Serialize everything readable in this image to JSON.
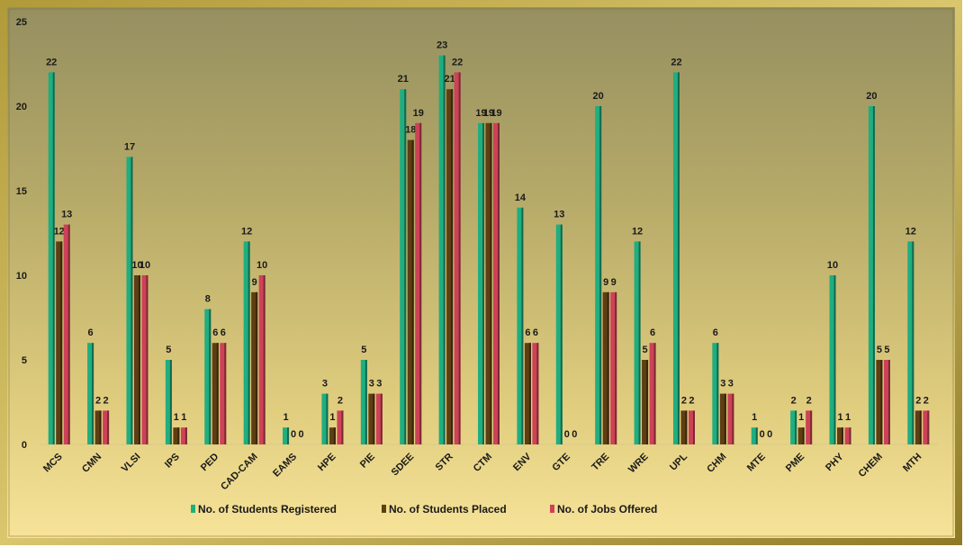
{
  "chart_data": {
    "type": "bar",
    "categories": [
      "MCS",
      "CMN",
      "VLSI",
      "IPS",
      "PED",
      "CAD-CAM",
      "EAMS",
      "HPE",
      "PIE",
      "SDEE",
      "STR",
      "CTM",
      "ENV",
      "GTE",
      "TRE",
      "WRE",
      "UPL",
      "CHM",
      "MTE",
      "PME",
      "PHY",
      "CHEM",
      "MTH"
    ],
    "series": [
      {
        "name": "No. of Students Registered",
        "color": "#1fae80",
        "values": [
          22,
          6,
          17,
          5,
          8,
          12,
          1,
          3,
          5,
          21,
          23,
          19,
          14,
          13,
          20,
          12,
          22,
          6,
          1,
          2,
          10,
          20,
          12
        ]
      },
      {
        "name": "No. of Students Placed",
        "color": "#5e3e12",
        "values": [
          12,
          2,
          10,
          1,
          6,
          9,
          0,
          1,
          3,
          18,
          21,
          19,
          6,
          0,
          9,
          5,
          2,
          3,
          0,
          1,
          1,
          5,
          2
        ]
      },
      {
        "name": "No. of Jobs Offered",
        "color": "#cd4257",
        "values": [
          13,
          2,
          10,
          1,
          6,
          10,
          0,
          2,
          3,
          19,
          22,
          19,
          6,
          0,
          9,
          6,
          2,
          3,
          0,
          2,
          1,
          5,
          2
        ]
      }
    ],
    "ylim": [
      0,
      25
    ],
    "yticks": [
      0,
      5,
      10,
      15,
      20,
      25
    ],
    "grid": false,
    "legend_position": "bottom",
    "data_labels": true
  }
}
